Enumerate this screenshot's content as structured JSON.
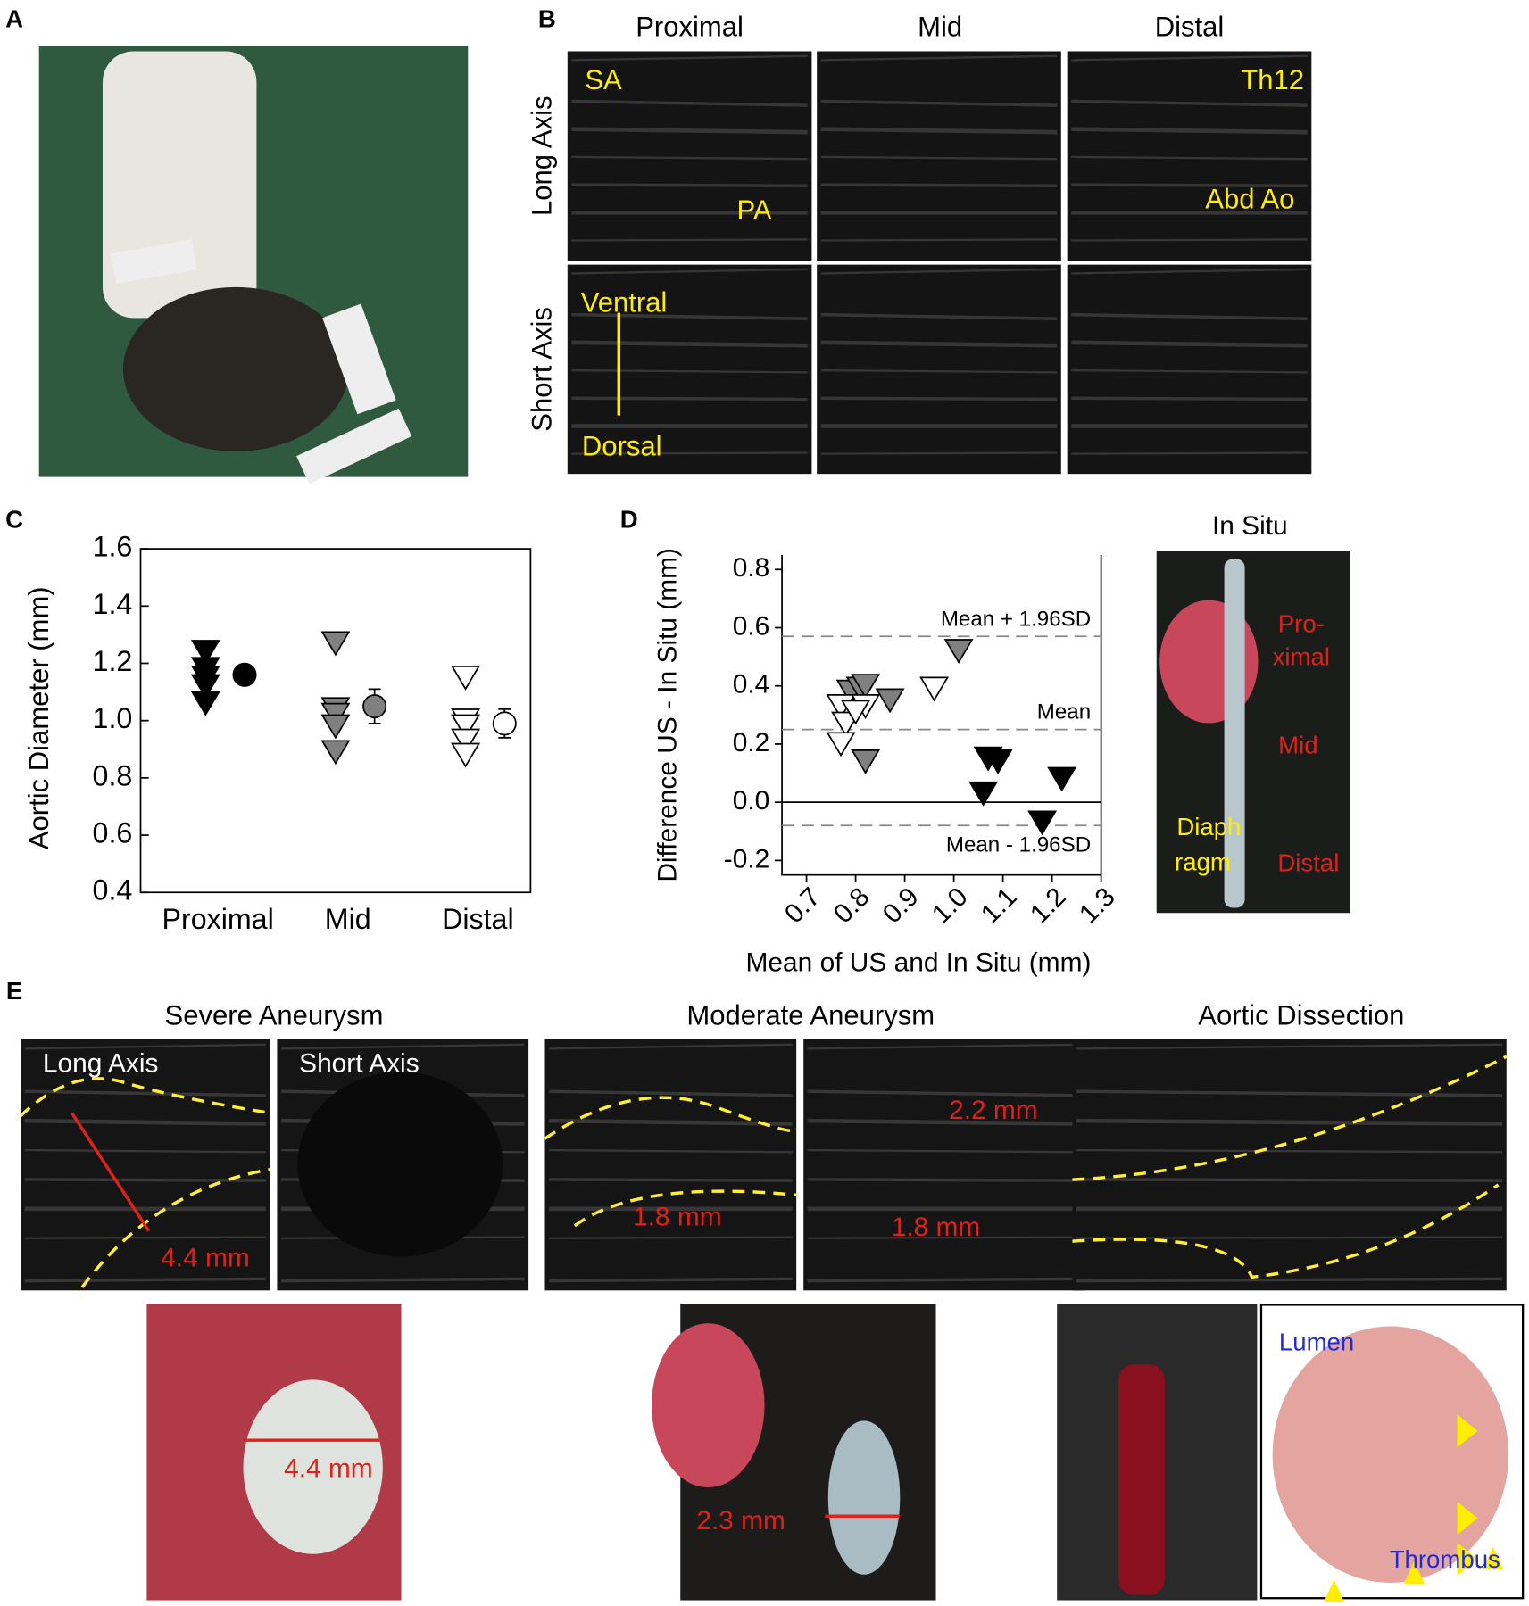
{
  "panel_labels": [
    "A",
    "B",
    "C",
    "D",
    "E"
  ],
  "panel_b": {
    "columns": [
      "Proximal",
      "Mid",
      "Distal"
    ],
    "rows": [
      "Long Axis",
      "Short Axis"
    ],
    "annotations": [
      "SA",
      "PA",
      "Th12",
      "Abd Ao",
      "Ventral",
      "Dorsal"
    ]
  },
  "chart_data": [
    {
      "type": "dot",
      "y_label": "Aortic Diameter (mm)",
      "categories": [
        "Proximal",
        "Mid",
        "Distal"
      ],
      "points": [
        [
          1.24,
          1.18,
          1.15,
          1.12,
          1.06
        ],
        [
          1.27,
          1.04,
          1.02,
          0.98,
          0.89
        ],
        [
          1.15,
          1.0,
          0.98,
          0.93,
          0.88
        ]
      ],
      "means": [
        1.16,
        1.05,
        0.99
      ],
      "errors": [
        0.02,
        0.06,
        0.05
      ],
      "colors": [
        "#000000",
        "#808080",
        "#ffffff"
      ],
      "ylim": [
        0.4,
        1.6
      ],
      "yticks": [
        0.4,
        0.6,
        0.8,
        {
          "value": 1.0,
          "label": "1.0"
        },
        1.2,
        1.4,
        1.6
      ]
    },
    {
      "type": "scatter",
      "x_label": "Mean of US and In Situ (mm)",
      "y_label": "Difference US - In Situ (mm)",
      "series": [
        {
          "color": "#808080",
          "x": [
            0.79,
            0.81,
            0.82,
            0.87,
            0.82,
            1.01
          ],
          "values": [
            0.38,
            0.39,
            0.4,
            0.35,
            0.14,
            0.52
          ]
        },
        {
          "color": "#ffffff",
          "x": [
            0.77,
            0.78,
            0.77,
            0.82,
            0.8,
            0.96
          ],
          "values": [
            0.33,
            0.27,
            0.2,
            0.33,
            0.31,
            0.39
          ]
        },
        {
          "color": "#000000",
          "x": [
            1.07,
            1.09,
            1.06,
            1.22,
            1.18
          ],
          "values": [
            0.15,
            0.14,
            0.03,
            0.08,
            -0.07
          ]
        }
      ],
      "reference_lines": [
        {
          "value": 0.57,
          "label": "Mean + 1.96SD"
        },
        {
          "value": 0.25,
          "label": "Mean"
        },
        {
          "value": -0.08,
          "label": "Mean - 1.96SD"
        }
      ],
      "baseline": 0,
      "xlim": [
        0.65,
        1.3
      ],
      "xticks": [
        0.7,
        0.8,
        0.9,
        {
          "value": 1.0,
          "label": "1.0"
        },
        1.1,
        1.2,
        1.3
      ],
      "ylim": [
        -0.25,
        0.85
      ],
      "yticks": [
        -0.2,
        {
          "value": 0.0,
          "label": "0.0"
        },
        0.2,
        0.4,
        0.6,
        0.8
      ]
    }
  ],
  "in_situ": {
    "title": "In Situ",
    "labels": [
      "Pro-",
      "ximal",
      "Mid",
      "Distal",
      "Diaph",
      "ragm"
    ]
  },
  "panel_e": {
    "titles": [
      "Severe Aneurysm",
      "Moderate Aneurysm",
      "Aortic Dissection"
    ],
    "views": [
      "Long Axis",
      "Short Axis"
    ],
    "us_measurements": [
      "4.4 mm",
      "1.8 mm",
      "2.2 mm",
      "1.8 mm"
    ],
    "photo_measurements": [
      "4.4 mm",
      "2.3 mm"
    ],
    "histology": [
      "Lumen",
      "Thrombus"
    ]
  }
}
